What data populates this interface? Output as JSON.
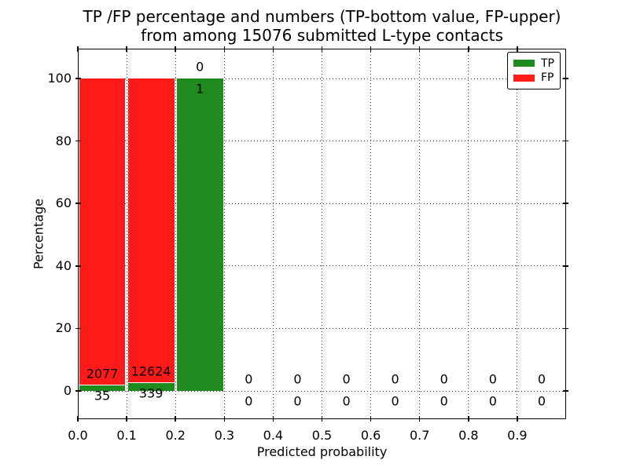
{
  "title": {
    "line1": "TP /FP percentage and numbers (TP-bottom value, FP-upper)",
    "line2": "from among 15076 submitted L-type contacts"
  },
  "axes": {
    "xlabel": "Predicted probability",
    "ylabel": "Percentage"
  },
  "legend": {
    "position": "upper right",
    "items": [
      {
        "label": "TP",
        "color": "#1f8b1f"
      },
      {
        "label": "FP",
        "color": "#ff1a1a"
      }
    ]
  },
  "chart_data": {
    "type": "bar",
    "stacked": true,
    "title": "TP /FP percentage and numbers (TP-bottom value, FP-upper) from among 15076 submitted L-type contacts",
    "xlabel": "Predicted probability",
    "ylabel": "Percentage",
    "total_submitted": 15076,
    "contact_type": "L-type",
    "xlim": [
      0.0,
      1.0
    ],
    "ylim": [
      -9,
      110
    ],
    "x_tick_labels": [
      "0.0",
      "0.1",
      "0.2",
      "0.3",
      "0.4",
      "0.5",
      "0.6",
      "0.7",
      "0.8",
      "0.9"
    ],
    "x_tick_values": [
      0.0,
      0.1,
      0.2,
      0.3,
      0.4,
      0.5,
      0.6,
      0.7,
      0.8,
      0.9
    ],
    "y_tick_values": [
      0,
      20,
      40,
      60,
      80,
      100
    ],
    "grid": "dotted",
    "legend_position": "upper right",
    "series": [
      {
        "name": "TP",
        "role": "bottom",
        "color": "#1f8b1f"
      },
      {
        "name": "FP",
        "role": "upper",
        "color": "#ff1a1a"
      }
    ],
    "bins": [
      {
        "x_range": [
          0.0,
          0.1
        ],
        "tp_count": 35,
        "fp_count": 2077,
        "tp_pct": 1.66,
        "fp_pct": 98.34
      },
      {
        "x_range": [
          0.1,
          0.2
        ],
        "tp_count": 339,
        "fp_count": 12624,
        "tp_pct": 2.62,
        "fp_pct": 97.38
      },
      {
        "x_range": [
          0.2,
          0.3
        ],
        "tp_count": 1,
        "fp_count": 0,
        "tp_pct": 100.0,
        "fp_pct": 0.0
      },
      {
        "x_range": [
          0.3,
          0.4
        ],
        "tp_count": 0,
        "fp_count": 0,
        "tp_pct": 0.0,
        "fp_pct": 0.0
      },
      {
        "x_range": [
          0.4,
          0.5
        ],
        "tp_count": 0,
        "fp_count": 0,
        "tp_pct": 0.0,
        "fp_pct": 0.0
      },
      {
        "x_range": [
          0.5,
          0.6
        ],
        "tp_count": 0,
        "fp_count": 0,
        "tp_pct": 0.0,
        "fp_pct": 0.0
      },
      {
        "x_range": [
          0.6,
          0.7
        ],
        "tp_count": 0,
        "fp_count": 0,
        "tp_pct": 0.0,
        "fp_pct": 0.0
      },
      {
        "x_range": [
          0.7,
          0.8
        ],
        "tp_count": 0,
        "fp_count": 0,
        "tp_pct": 0.0,
        "fp_pct": 0.0
      },
      {
        "x_range": [
          0.8,
          0.9
        ],
        "tp_count": 0,
        "fp_count": 0,
        "tp_pct": 0.0,
        "fp_pct": 0.0
      },
      {
        "x_range": [
          0.9,
          1.0
        ],
        "tp_count": 0,
        "fp_count": 0,
        "tp_pct": 0.0,
        "fp_pct": 0.0
      }
    ]
  }
}
